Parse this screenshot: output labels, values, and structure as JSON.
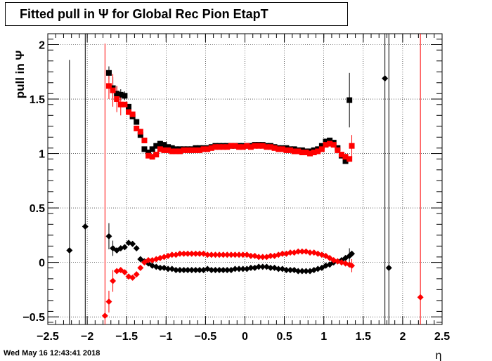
{
  "title": "Fitted pull in  Ψ  for Global Rec Pion EtapT",
  "timestamp": "Wed May 16 12:43:41 2018",
  "chart_data": {
    "type": "scatter",
    "title": "Fitted pull in  Ψ  for Global Rec Pion EtapT",
    "xlabel": "η",
    "ylabel": "pull in  Ψ",
    "xlim": [
      -2.5,
      2.5
    ],
    "ylim": [
      -0.57,
      2.1
    ],
    "grid": true,
    "x_ticks": [
      -2.5,
      -2,
      -1.5,
      -1,
      -0.5,
      0,
      0.5,
      1,
      1.5,
      2,
      2.5
    ],
    "x_tick_labels": [
      "−2.5",
      "−2",
      "−1.5",
      "−1",
      "−0.5",
      "0",
      "0.5",
      "1",
      "1.5",
      "2",
      "2.5"
    ],
    "y_ticks": [
      -0.5,
      0,
      0.5,
      1,
      1.5,
      2
    ],
    "y_tick_labels": [
      "−0.5",
      "0",
      "0.5",
      "1",
      "1.5",
      "2"
    ],
    "colors": {
      "black_series": "#000000",
      "red_series": "#ff0000"
    },
    "series": [
      {
        "marker": "square",
        "color": "#000000",
        "points": [
          [
            -1.725,
            1.74
          ],
          [
            -1.675,
            1.6
          ],
          [
            -1.625,
            1.55
          ],
          [
            -1.575,
            1.54
          ],
          [
            -1.525,
            1.53
          ],
          [
            -1.475,
            1.43
          ],
          [
            -1.425,
            1.34
          ],
          [
            -1.375,
            1.29
          ],
          [
            -1.325,
            1.17
          ],
          [
            -1.275,
            1.04
          ],
          [
            -1.225,
            1.01
          ],
          [
            -1.175,
            1.04
          ],
          [
            -1.125,
            1.07
          ],
          [
            -1.075,
            1.09
          ],
          [
            -1.025,
            1.08
          ],
          [
            -0.975,
            1.06
          ],
          [
            -0.925,
            1.05
          ],
          [
            -0.875,
            1.04
          ],
          [
            -0.825,
            1.04
          ],
          [
            -0.775,
            1.04
          ],
          [
            -0.725,
            1.04
          ],
          [
            -0.675,
            1.04
          ],
          [
            -0.625,
            1.05
          ],
          [
            -0.575,
            1.05
          ],
          [
            -0.525,
            1.05
          ],
          [
            -0.475,
            1.05
          ],
          [
            -0.425,
            1.06
          ],
          [
            -0.375,
            1.07
          ],
          [
            -0.325,
            1.07
          ],
          [
            -0.275,
            1.07
          ],
          [
            -0.225,
            1.07
          ],
          [
            -0.175,
            1.07
          ],
          [
            -0.125,
            1.07
          ],
          [
            -0.075,
            1.07
          ],
          [
            -0.025,
            1.07
          ],
          [
            0.025,
            1.07
          ],
          [
            0.075,
            1.07
          ],
          [
            0.125,
            1.08
          ],
          [
            0.175,
            1.08
          ],
          [
            0.225,
            1.08
          ],
          [
            0.275,
            1.07
          ],
          [
            0.325,
            1.07
          ],
          [
            0.375,
            1.06
          ],
          [
            0.425,
            1.05
          ],
          [
            0.475,
            1.05
          ],
          [
            0.525,
            1.05
          ],
          [
            0.575,
            1.04
          ],
          [
            0.625,
            1.04
          ],
          [
            0.675,
            1.03
          ],
          [
            0.725,
            1.03
          ],
          [
            0.775,
            1.02
          ],
          [
            0.825,
            1.02
          ],
          [
            0.875,
            1.03
          ],
          [
            0.925,
            1.04
          ],
          [
            0.975,
            1.07
          ],
          [
            1.025,
            1.11
          ],
          [
            1.075,
            1.12
          ],
          [
            1.125,
            1.1
          ],
          [
            1.175,
            1.05
          ],
          [
            1.225,
            0.98
          ],
          [
            1.275,
            0.93
          ],
          [
            1.325,
            1.49
          ]
        ],
        "err": [
          [
            -1.725,
            0.06
          ],
          [
            -1.675,
            0.1
          ],
          [
            -1.625,
            0.07
          ],
          [
            -1.575,
            0.05
          ],
          [
            -1.525,
            0.04
          ],
          [
            1.325,
            0.25
          ]
        ]
      },
      {
        "marker": "square",
        "color": "#ff0000",
        "points": [
          [
            -1.725,
            1.62
          ],
          [
            -1.675,
            1.58
          ],
          [
            -1.625,
            1.5
          ],
          [
            -1.575,
            1.45
          ],
          [
            -1.525,
            1.45
          ],
          [
            -1.475,
            1.38
          ],
          [
            -1.425,
            1.36
          ],
          [
            -1.375,
            1.23
          ],
          [
            -1.325,
            1.2
          ],
          [
            -1.275,
            1.12
          ],
          [
            -1.225,
            0.98
          ],
          [
            -1.175,
            0.97
          ],
          [
            -1.125,
            0.99
          ],
          [
            -1.075,
            1.04
          ],
          [
            -1.025,
            1.03
          ],
          [
            -0.975,
            1.03
          ],
          [
            -0.925,
            1.02
          ],
          [
            -0.875,
            1.02
          ],
          [
            -0.825,
            1.02
          ],
          [
            -0.775,
            1.03
          ],
          [
            -0.725,
            1.03
          ],
          [
            -0.675,
            1.03
          ],
          [
            -0.625,
            1.03
          ],
          [
            -0.575,
            1.03
          ],
          [
            -0.525,
            1.04
          ],
          [
            -0.475,
            1.04
          ],
          [
            -0.425,
            1.05
          ],
          [
            -0.375,
            1.06
          ],
          [
            -0.325,
            1.06
          ],
          [
            -0.275,
            1.06
          ],
          [
            -0.225,
            1.06
          ],
          [
            -0.175,
            1.07
          ],
          [
            -0.125,
            1.07
          ],
          [
            -0.075,
            1.06
          ],
          [
            -0.025,
            1.06
          ],
          [
            0.025,
            1.07
          ],
          [
            0.075,
            1.06
          ],
          [
            0.125,
            1.07
          ],
          [
            0.175,
            1.07
          ],
          [
            0.225,
            1.07
          ],
          [
            0.275,
            1.06
          ],
          [
            0.325,
            1.06
          ],
          [
            0.375,
            1.05
          ],
          [
            0.425,
            1.04
          ],
          [
            0.475,
            1.04
          ],
          [
            0.525,
            1.03
          ],
          [
            0.575,
            1.03
          ],
          [
            0.625,
            1.02
          ],
          [
            0.675,
            1.02
          ],
          [
            0.725,
            1.01
          ],
          [
            0.775,
            1.01
          ],
          [
            0.825,
            1.0
          ],
          [
            0.875,
            1.01
          ],
          [
            0.925,
            1.02
          ],
          [
            0.975,
            1.04
          ],
          [
            1.025,
            1.08
          ],
          [
            1.075,
            1.09
          ],
          [
            1.125,
            1.08
          ],
          [
            1.175,
            1.03
          ],
          [
            1.225,
            0.99
          ],
          [
            1.275,
            0.97
          ],
          [
            1.325,
            0.95
          ],
          [
            1.355,
            1.07
          ]
        ],
        "err": [
          [
            -1.725,
            0.12
          ],
          [
            -1.675,
            0.15
          ],
          [
            -1.625,
            0.12
          ],
          [
            -1.575,
            0.1
          ],
          [
            1.355,
            0.1
          ]
        ]
      },
      {
        "marker": "diamond",
        "color": "#000000",
        "points": [
          [
            -2.225,
            0.11
          ],
          [
            -2.025,
            0.33
          ],
          [
            -1.725,
            0.24
          ],
          [
            -1.675,
            0.13
          ],
          [
            -1.625,
            0.11
          ],
          [
            -1.575,
            0.13
          ],
          [
            -1.525,
            0.14
          ],
          [
            -1.475,
            0.18
          ],
          [
            -1.425,
            0.17
          ],
          [
            -1.375,
            0.13
          ],
          [
            -1.325,
            0.03
          ],
          [
            -1.275,
            0.01
          ],
          [
            -1.225,
            -0.01
          ],
          [
            -1.175,
            -0.03
          ],
          [
            -1.125,
            -0.04
          ],
          [
            -1.075,
            -0.05
          ],
          [
            -1.025,
            -0.05
          ],
          [
            -0.975,
            -0.06
          ],
          [
            -0.925,
            -0.06
          ],
          [
            -0.875,
            -0.07
          ],
          [
            -0.825,
            -0.07
          ],
          [
            -0.775,
            -0.07
          ],
          [
            -0.725,
            -0.07
          ],
          [
            -0.675,
            -0.07
          ],
          [
            -0.625,
            -0.07
          ],
          [
            -0.575,
            -0.07
          ],
          [
            -0.525,
            -0.07
          ],
          [
            -0.475,
            -0.06
          ],
          [
            -0.425,
            -0.07
          ],
          [
            -0.375,
            -0.07
          ],
          [
            -0.325,
            -0.07
          ],
          [
            -0.275,
            -0.07
          ],
          [
            -0.225,
            -0.07
          ],
          [
            -0.175,
            -0.07
          ],
          [
            -0.125,
            -0.06
          ],
          [
            -0.075,
            -0.06
          ],
          [
            -0.025,
            -0.06
          ],
          [
            0.025,
            -0.06
          ],
          [
            0.075,
            -0.05
          ],
          [
            0.125,
            -0.05
          ],
          [
            0.175,
            -0.04
          ],
          [
            0.225,
            -0.04
          ],
          [
            0.275,
            -0.04
          ],
          [
            0.325,
            -0.05
          ],
          [
            0.375,
            -0.05
          ],
          [
            0.425,
            -0.06
          ],
          [
            0.475,
            -0.06
          ],
          [
            0.525,
            -0.07
          ],
          [
            0.575,
            -0.07
          ],
          [
            0.625,
            -0.07
          ],
          [
            0.675,
            -0.08
          ],
          [
            0.725,
            -0.08
          ],
          [
            0.775,
            -0.08
          ],
          [
            0.825,
            -0.08
          ],
          [
            0.875,
            -0.07
          ],
          [
            0.925,
            -0.06
          ],
          [
            0.975,
            -0.05
          ],
          [
            1.025,
            -0.03
          ],
          [
            1.075,
            -0.02
          ],
          [
            1.125,
            0.0
          ],
          [
            1.175,
            0.01
          ],
          [
            1.225,
            0.02
          ],
          [
            1.275,
            0.04
          ],
          [
            1.325,
            0.06
          ],
          [
            1.355,
            0.08
          ],
          [
            1.775,
            1.69
          ],
          [
            1.825,
            -0.05
          ]
        ],
        "err": [
          [
            -2.225,
            1.75
          ],
          [
            -2.025,
            2.0
          ],
          [
            -1.725,
            0.12
          ],
          [
            -1.675,
            0.07
          ],
          [
            1.325,
            0.07
          ],
          [
            1.775,
            2.5
          ],
          [
            1.825,
            2.5
          ]
        ]
      },
      {
        "marker": "diamond",
        "color": "#ff0000",
        "points": [
          [
            -1.775,
            -0.49
          ],
          [
            -1.725,
            -0.36
          ],
          [
            -1.675,
            -0.17
          ],
          [
            -1.625,
            -0.08
          ],
          [
            -1.575,
            -0.07
          ],
          [
            -1.525,
            -0.09
          ],
          [
            -1.475,
            -0.13
          ],
          [
            -1.425,
            -0.14
          ],
          [
            -1.375,
            -0.11
          ],
          [
            -1.325,
            -0.05
          ],
          [
            -1.275,
            0.0
          ],
          [
            -1.225,
            0.02
          ],
          [
            -1.175,
            0.02
          ],
          [
            -1.125,
            0.03
          ],
          [
            -1.075,
            0.04
          ],
          [
            -1.025,
            0.05
          ],
          [
            -0.975,
            0.06
          ],
          [
            -0.925,
            0.07
          ],
          [
            -0.875,
            0.07
          ],
          [
            -0.825,
            0.08
          ],
          [
            -0.775,
            0.08
          ],
          [
            -0.725,
            0.08
          ],
          [
            -0.675,
            0.08
          ],
          [
            -0.625,
            0.08
          ],
          [
            -0.575,
            0.08
          ],
          [
            -0.525,
            0.08
          ],
          [
            -0.475,
            0.07
          ],
          [
            -0.425,
            0.07
          ],
          [
            -0.375,
            0.07
          ],
          [
            -0.325,
            0.07
          ],
          [
            -0.275,
            0.07
          ],
          [
            -0.225,
            0.07
          ],
          [
            -0.175,
            0.07
          ],
          [
            -0.125,
            0.07
          ],
          [
            -0.075,
            0.07
          ],
          [
            -0.025,
            0.07
          ],
          [
            0.025,
            0.07
          ],
          [
            0.075,
            0.06
          ],
          [
            0.125,
            0.06
          ],
          [
            0.175,
            0.05
          ],
          [
            0.225,
            0.05
          ],
          [
            0.275,
            0.05
          ],
          [
            0.325,
            0.06
          ],
          [
            0.375,
            0.06
          ],
          [
            0.425,
            0.07
          ],
          [
            0.475,
            0.08
          ],
          [
            0.525,
            0.08
          ],
          [
            0.575,
            0.09
          ],
          [
            0.625,
            0.09
          ],
          [
            0.675,
            0.1
          ],
          [
            0.725,
            0.1
          ],
          [
            0.775,
            0.1
          ],
          [
            0.825,
            0.09
          ],
          [
            0.875,
            0.09
          ],
          [
            0.925,
            0.08
          ],
          [
            0.975,
            0.07
          ],
          [
            1.025,
            0.06
          ],
          [
            1.075,
            0.04
          ],
          [
            1.125,
            0.02
          ],
          [
            1.175,
            0.01
          ],
          [
            1.225,
            0.0
          ],
          [
            1.275,
            -0.01
          ],
          [
            1.325,
            -0.02
          ],
          [
            1.355,
            -0.03
          ],
          [
            2.225,
            -0.32
          ]
        ],
        "err": [
          [
            -1.775,
            2.5
          ],
          [
            -1.725,
            0.1
          ],
          [
            -1.675,
            0.1
          ],
          [
            1.355,
            0.06
          ],
          [
            2.225,
            2.5
          ]
        ]
      }
    ]
  }
}
